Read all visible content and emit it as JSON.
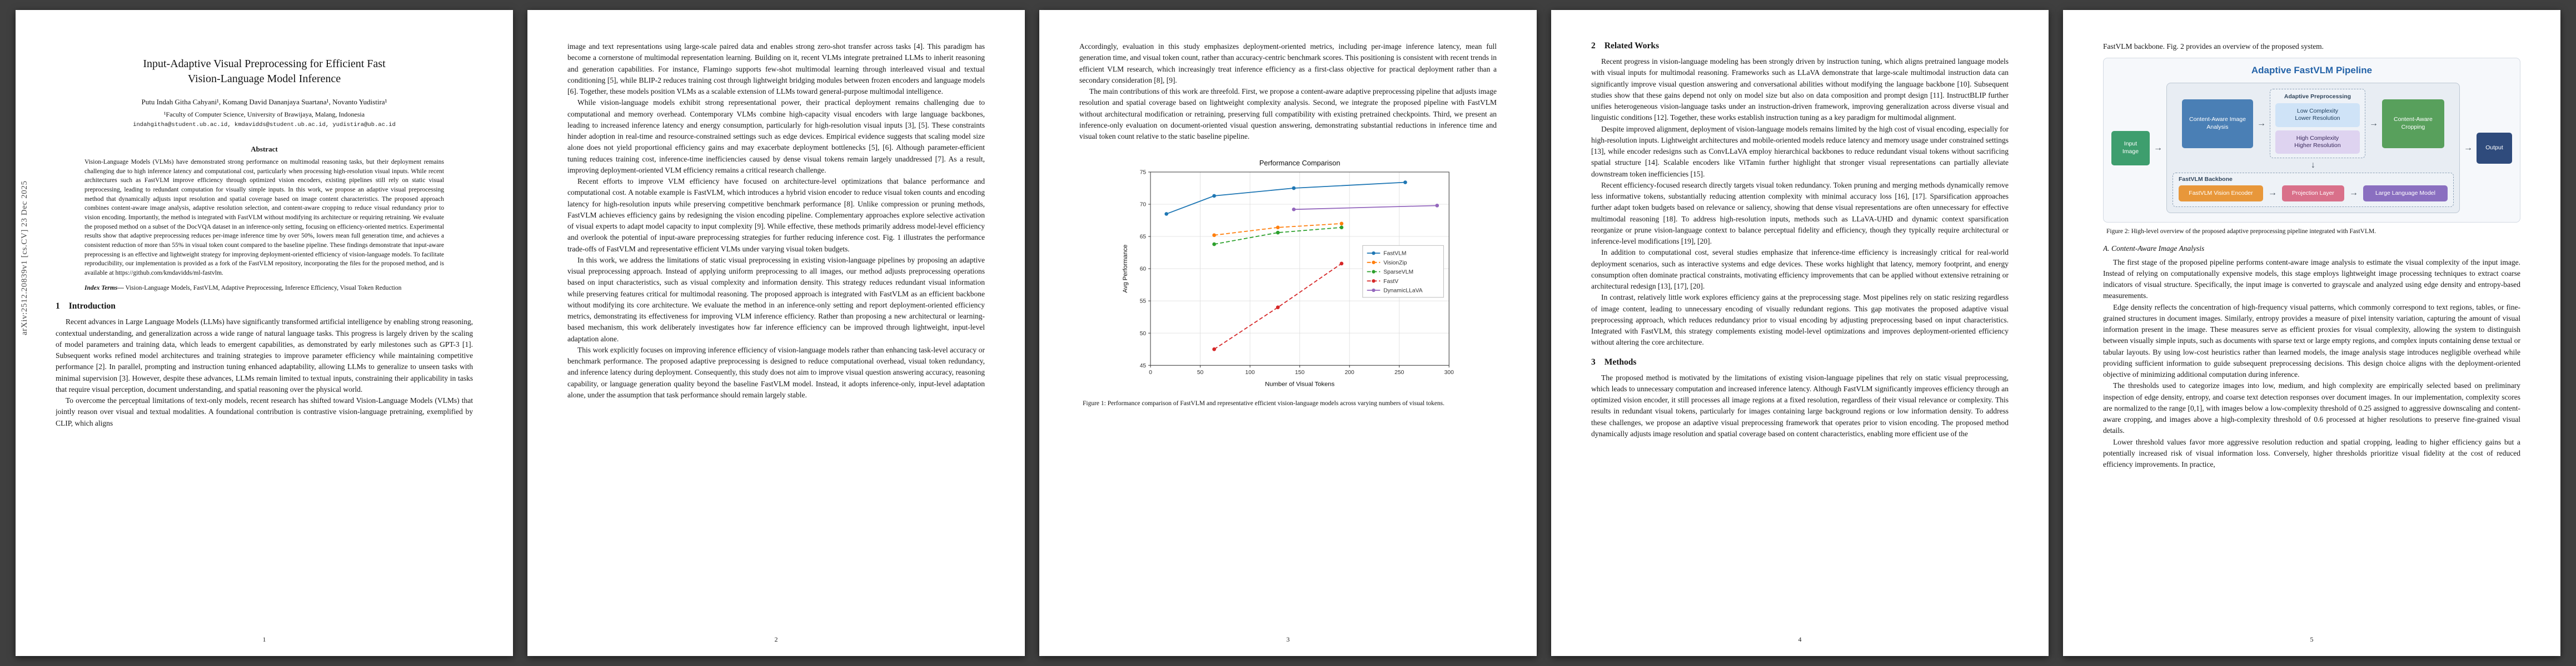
{
  "background_color": "#3f3f3f",
  "arxiv_label": "arXiv:2512.20839v1  [cs.CV]  23 Dec 2025",
  "paper": {
    "title_line1": "Input-Adaptive Visual Preprocessing for Efficient Fast",
    "title_line2": "Vision-Language Model Inference",
    "authors": "Putu Indah Githa Cahyani¹, Komang David Dananjaya Suartana¹, Novanto Yudistira¹",
    "affiliation": "¹Faculty of Computer Science, University of Brawijaya, Malang, Indonesia",
    "emails": "indahgitha@student.ub.ac.id, kmdavidds@student.ub.ac.id, yudistira@ub.ac.id"
  },
  "abstract": {
    "heading": "Abstract",
    "text": "Vision-Language Models (VLMs) have demonstrated strong performance on multimodal reasoning tasks, but their deployment remains challenging due to high inference latency and computational cost, particularly when processing high-resolution visual inputs. While recent architectures such as FastVLM improve efficiency through optimized vision encoders, existing pipelines still rely on static visual preprocessing, leading to redundant computation for visually simple inputs. In this work, we propose an adaptive visual preprocessing method that dynamically adjusts input resolution and spatial coverage based on image content characteristics. The proposed approach combines content-aware image analysis, adaptive resolution selection, and content-aware cropping to reduce visual redundancy prior to vision encoding. Importantly, the method is integrated with FastVLM without modifying its architecture or requiring retraining. We evaluate the proposed method on a subset of the DocVQA dataset in an inference-only setting, focusing on efficiency-oriented metrics. Experimental results show that adaptive preprocessing reduces per-image inference time by over 50%, lowers mean full generation time, and achieves a consistent reduction of more than 55% in visual token count compared to the baseline pipeline. These findings demonstrate that input-aware preprocessing is an effective and lightweight strategy for improving deployment-oriented efficiency of vision-language models. To facilitate reproducibility, our implementation is provided as a fork of the FastVLM repository, incorporating the files for the proposed method, and is available at https://github.com/kmdavidds/ml-fastvlm."
  },
  "index_terms": {
    "label": "Index Terms—",
    "text": " Vision-Language Models, FastVLM, Adaptive Preprocessing, Inference Efficiency, Visual Token Reduction"
  },
  "sections": {
    "introduction": {
      "number": "1",
      "title": "Introduction"
    },
    "related": {
      "number": "2",
      "title": "Related Works"
    },
    "methods": {
      "number": "3",
      "title": "Methods"
    }
  },
  "page1": {
    "intro_p1": "Recent advances in Large Language Models (LLMs) have significantly transformed artificial intelligence by enabling strong reasoning, contextual understanding, and generalization across a wide range of natural language tasks. This progress is largely driven by the scaling of model parameters and training data, which leads to emergent capabilities, as demonstrated by early milestones such as GPT-3 [1]. Subsequent works refined model architectures and training strategies to improve parameter efficiency while maintaining competitive performance [2]. In parallel, prompting and instruction tuning enhanced adaptability, allowing LLMs to generalize to unseen tasks with minimal supervision [3]. However, despite these advances, LLMs remain limited to textual inputs, constraining their applicability in tasks that require visual perception, document understanding, and spatial reasoning over the physical world.",
    "intro_p2": "To overcome the perceptual limitations of text-only models, recent research has shifted toward Vision-Language Models (VLMs) that jointly reason over visual and textual modalities. A foundational contribution is contrastive vision-language pretraining, exemplified by CLIP, which aligns",
    "page_number": "1"
  },
  "page2": {
    "paragraphs": [
      "image and text representations using large-scale paired data and enables strong zero-shot transfer across tasks [4]. This paradigm has become a cornerstone of multimodal representation learning. Building on it, recent VLMs integrate pretrained LLMs to inherit reasoning and generation capabilities. For instance, Flamingo supports few-shot multimodal learning through interleaved visual and textual conditioning [5], while BLIP-2 reduces training cost through lightweight bridging modules between frozen encoders and language models [6]. Together, these models position VLMs as a scalable extension of LLMs toward general-purpose multimodal intelligence.",
      "While vision-language models exhibit strong representational power, their practical deployment remains challenging due to computational and memory overhead. Contemporary VLMs combine high-capacity visual encoders with large language backbones, leading to increased inference latency and energy consumption, particularly for high-resolution visual inputs [3], [5]. These constraints hinder adoption in real-time and resource-constrained settings such as edge devices. Empirical evidence suggests that scaling model size alone does not yield proportional efficiency gains and may exacerbate deployment bottlenecks [5], [6]. Although parameter-efficient tuning reduces training cost, inference-time inefficiencies caused by dense visual tokens remain largely unaddressed [7]. As a result, improving deployment-oriented VLM efficiency remains a critical research challenge.",
      "Recent efforts to improve VLM efficiency have focused on architecture-level optimizations that balance performance and computational cost. A notable example is FastVLM, which introduces a hybrid vision encoder to reduce visual token counts and encoding latency for high-resolution inputs while preserving competitive benchmark performance [8]. Unlike compression or pruning methods, FastVLM achieves efficiency gains by redesigning the vision encoding pipeline. Complementary approaches explore selective activation of visual experts to adapt model capacity to input complexity [9]. While effective, these methods primarily address model-level efficiency and overlook the potential of input-aware preprocessing strategies for further reducing inference cost. Fig. 1 illustrates the performance trade-offs of FastVLM and representative efficient VLMs under varying visual token budgets.",
      "In this work, we address the limitations of static visual preprocessing in existing vision-language pipelines by proposing an adaptive visual preprocessing approach. Instead of applying uniform preprocessing to all images, our method adjusts preprocessing operations based on input characteristics, such as visual complexity and information density. This strategy reduces redundant visual information while preserving features critical for multimodal reasoning. The proposed approach is integrated with FastVLM as an efficient backbone without modifying its core architecture. We evaluate the method in an inference-only setting and report deployment-oriented efficiency metrics, demonstrating its effectiveness for improving VLM inference efficiency. Rather than proposing a new architectural or learning-based mechanism, this work deliberately investigates how far inference efficiency can be improved through lightweight, input-level adaptation alone.",
      "This work explicitly focuses on improving inference efficiency of vision-language models rather than enhancing task-level accuracy or benchmark performance. The proposed adaptive preprocessing is designed to reduce computational overhead, visual token redundancy, and inference latency during deployment. Consequently, this study does not aim to improve visual question answering accuracy, reasoning capability, or language generation quality beyond the baseline FastVLM model. Instead, it adopts inference-only, input-level adaptation alone, under the assumption that task performance should remain largely stable."
    ],
    "page_number": "2"
  },
  "page3": {
    "paragraphs": [
      "Accordingly, evaluation in this study emphasizes deployment-oriented metrics, including per-image inference latency, mean full generation time, and visual token count, rather than accuracy-centric benchmark scores. This positioning is consistent with recent trends in efficient VLM research, which increasingly treat inference efficiency as a first-class objective for practical deployment rather than a secondary consideration [8], [9].",
      "The main contributions of this work are threefold. First, we propose a content-aware adaptive preprocessing pipeline that adjusts image resolution and spatial coverage based on lightweight complexity analysis. Second, we integrate the proposed pipeline with FastVLM without architectural modification or retraining, preserving full compatibility with existing pretrained checkpoints. Third, we present an inference-only evaluation on document-oriented visual question answering, demonstrating substantial reductions in inference time and visual token count relative to the static baseline pipeline."
    ],
    "figure1_caption": "Figure 1: Performance comparison of FastVLM and representative efficient vision-language models across varying numbers of visual tokens.",
    "page_number": "3"
  },
  "page4": {
    "related_paragraphs": [
      "Recent progress in vision-language modeling has been strongly driven by instruction tuning, which aligns pretrained language models with visual inputs for multimodal reasoning. Frameworks such as LLaVA demonstrate that large-scale multimodal instruction data can significantly improve visual question answering and conversational abilities without modifying the language backbone [10]. Subsequent studies show that these gains depend not only on model size but also on data composition and prompt design [11]. InstructBLIP further unifies heterogeneous vision-language tasks under an instruction-driven framework, improving generalization across diverse visual and linguistic conditions [12]. Together, these works establish instruction tuning as a key paradigm for multimodal alignment.",
      "Despite improved alignment, deployment of vision-language models remains limited by the high cost of visual encoding, especially for high-resolution inputs. Lightweight architectures and mobile-oriented models reduce latency and memory usage under constrained settings [13], while encoder redesigns such as ConvLLaVA employ hierarchical backbones to reduce redundant visual tokens without sacrificing spatial structure [14]. Scalable encoders like ViTamin further highlight that stronger visual representations can partially alleviate downstream token inefficiencies [15].",
      "Recent efficiency-focused research directly targets visual token redundancy. Token pruning and merging methods dynamically remove less informative tokens, substantially reducing attention complexity with minimal accuracy loss [16], [17]. Sparsification approaches further adapt token budgets based on relevance or saliency, showing that dense visual representations are often unnecessary for effective multimodal reasoning [18]. To address high-resolution inputs, methods such as LLaVA-UHD and dynamic context sparsification reorganize or prune vision-language context to balance perceptual fidelity and efficiency, though they typically require architectural or inference-level modifications [19], [20].",
      "In addition to computational cost, several studies emphasize that inference-time efficiency is increasingly critical for real-world deployment scenarios, such as interactive systems and edge devices. These works highlight that latency, memory footprint, and energy consumption often dominate practical constraints, motivating efficiency improvements that can be applied without extensive retraining or architectural redesign [13], [17], [20].",
      "In contrast, relatively little work explores efficiency gains at the preprocessing stage. Most pipelines rely on static resizing regardless of image content, leading to unnecessary encoding of visually redundant regions. This gap motivates the proposed adaptive visual preprocessing approach, which reduces redundancy prior to visual encoding by adjusting preprocessing based on input characteristics. Integrated with FastVLM, this strategy complements existing model-level optimizations and improves deployment-oriented efficiency without altering the core architecture."
    ],
    "methods_p1": "The proposed method is motivated by the limitations of existing vision-language pipelines that rely on static visual preprocessing, which leads to unnecessary computation and increased inference latency. Although FastVLM significantly improves efficiency through an optimized vision encoder, it still processes all image regions at a fixed resolution, regardless of their visual relevance or complexity. This results in redundant visual tokens, particularly for images containing large background regions or low information density. To address these challenges, we propose an adaptive visual preprocessing framework that operates prior to vision encoding. The proposed method dynamically adjusts image resolution and spatial coverage based on content characteristics, enabling more efficient use of the",
    "page_number": "4"
  },
  "page5": {
    "opening": "FastVLM backbone. Fig. 2 provides an overview of the proposed system.",
    "figure2_caption": "Figure 2: High-level overview of the proposed adaptive preprocessing pipeline integrated with FastVLM.",
    "subsection_a": "A. Content-Aware Image Analysis",
    "paragraphs": [
      "The first stage of the proposed pipeline performs content-aware image analysis to estimate the visual complexity of the input image. Instead of relying on computationally expensive models, this stage employs lightweight image processing techniques to extract coarse indicators of visual structure. Specifically, the input image is converted to grayscale and analyzed using edge density and entropy-based measurements.",
      "Edge density reflects the concentration of high-frequency visual patterns, which commonly correspond to text regions, tables, or fine-grained structures in document images. Similarly, entropy provides a measure of pixel intensity variation, capturing the amount of visual information present in the image. These measures serve as efficient proxies for visual complexity, allowing the system to distinguish between visually simple inputs, such as documents with sparse text or large empty regions, and complex inputs containing dense textual or tabular layouts. By using low-cost heuristics rather than learned models, the image analysis stage introduces negligible overhead while providing sufficient information to guide subsequent preprocessing decisions. This design choice aligns with the deployment-oriented objective of minimizing additional computation during inference.",
      "The thresholds used to categorize images into low, medium, and high complexity are empirically selected based on preliminary inspection of edge density, entropy, and coarse text detection responses over document images. In our implementation, complexity scores are normalized to the range [0,1], with images below a low-complexity threshold of 0.25 assigned to aggressive downscaling and content-aware cropping, and images above a high-complexity threshold of 0.6 processed at higher resolutions to preserve fine-grained visual details.",
      "Lower threshold values favor more aggressive resolution reduction and spatial cropping, leading to higher efficiency gains but a potentially increased risk of visual information loss. Conversely, higher thresholds prioritize visual fidelity at the cost of reduced efficiency improvements. In practice,"
    ],
    "page_number": "5"
  },
  "figure2": {
    "title": "Adaptive FastVLM Pipeline",
    "input": "Input Image",
    "analysis": "Content-Aware Image Analysis",
    "adaptive_label": "Adaptive Preprocessing",
    "low_1": "Low Complexity",
    "low_2": "Lower Resolution",
    "high_1": "High Complexity",
    "high_2": "Higher Resolution",
    "crop": "Content-Aware Cropping",
    "backbone_label": "FastVLM Backbone",
    "encoder": "FastVLM Vision Encoder",
    "projection": "Projection Layer",
    "llm": "Large Language Model",
    "output": "Output"
  },
  "chart_data": {
    "type": "line",
    "title": "Performance Comparison",
    "xlabel": "Number of Visual Tokens",
    "ylabel": "Avg Performance",
    "xlim": [
      0,
      300
    ],
    "ylim": [
      45,
      75
    ],
    "xticks": [
      0,
      50,
      100,
      150,
      200,
      250,
      300
    ],
    "yticks": [
      45,
      50,
      55,
      60,
      65,
      70,
      75
    ],
    "grid": true,
    "legend_position": "center-right",
    "series": [
      {
        "name": "FastVLM",
        "color": "#1f77b4",
        "style": "solid",
        "x": [
          16,
          64,
          144,
          256
        ],
        "y": [
          68.5,
          71.3,
          72.5,
          73.4
        ]
      },
      {
        "name": "VisionZip",
        "color": "#ff7f0e",
        "style": "dashed",
        "x": [
          64,
          128,
          192
        ],
        "y": [
          65.2,
          66.4,
          67.0
        ]
      },
      {
        "name": "SparseVLM",
        "color": "#2ca02c",
        "style": "dashed",
        "x": [
          64,
          128,
          192
        ],
        "y": [
          63.8,
          65.6,
          66.4
        ]
      },
      {
        "name": "FastV",
        "color": "#d62728",
        "style": "dashed",
        "x": [
          64,
          128,
          192
        ],
        "y": [
          47.5,
          54.0,
          60.8
        ]
      },
      {
        "name": "DynamicLLaVA",
        "color": "#9467bd",
        "style": "solid",
        "x": [
          144,
          288
        ],
        "y": [
          69.2,
          69.8
        ]
      }
    ]
  }
}
